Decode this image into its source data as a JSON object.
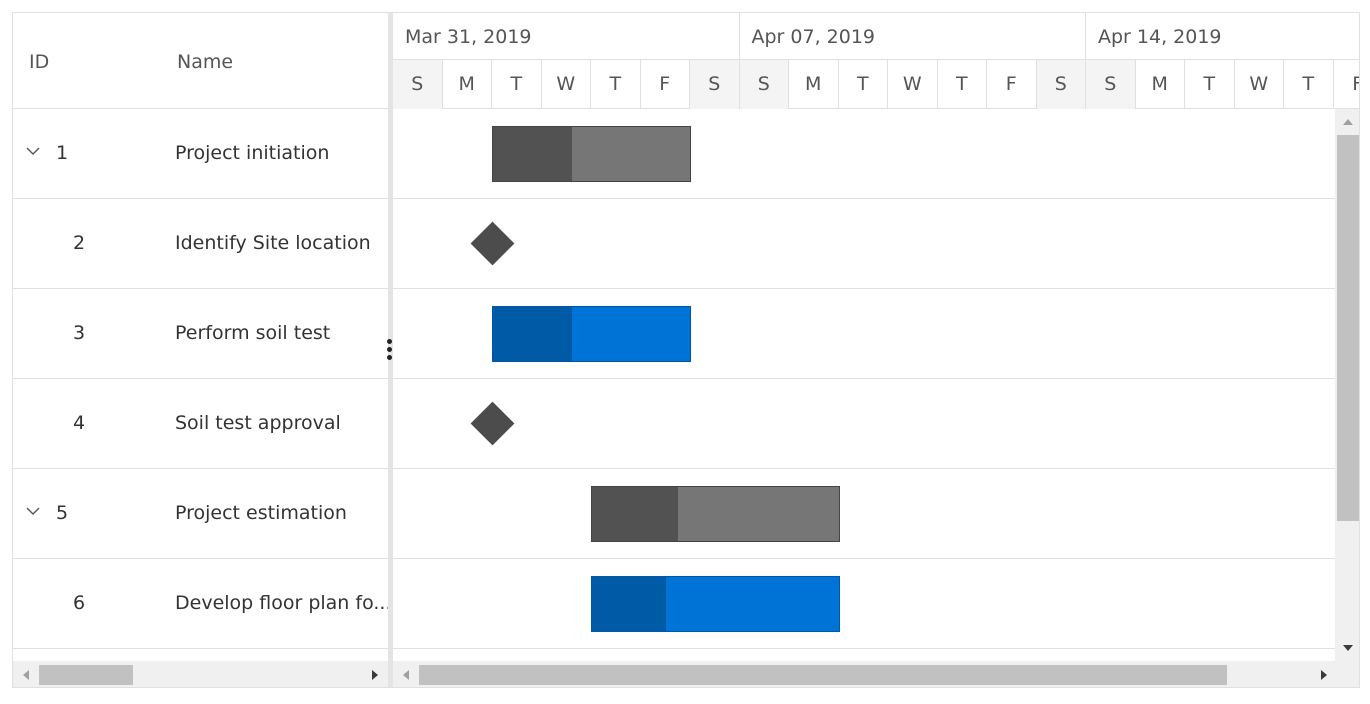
{
  "grid": {
    "columns": {
      "id": "ID",
      "name": "Name"
    },
    "rows": [
      {
        "id": "1",
        "name": "Project initiation",
        "parent": true,
        "icon": "chevron-down-icon"
      },
      {
        "id": "2",
        "name": "Identify Site location",
        "parent": false
      },
      {
        "id": "3",
        "name": "Perform soil test",
        "parent": false
      },
      {
        "id": "4",
        "name": "Soil test approval",
        "parent": false
      },
      {
        "id": "5",
        "name": "Project estimation",
        "parent": true,
        "icon": "chevron-down-icon"
      },
      {
        "id": "6",
        "name": "Develop floor plan fo...",
        "parent": false
      }
    ]
  },
  "timeline": {
    "weeks": [
      "Mar 31, 2019",
      "Apr 07, 2019",
      "Apr 14, 2019"
    ],
    "days": [
      "S",
      "M",
      "T",
      "W",
      "T",
      "F",
      "S",
      "S",
      "M",
      "T",
      "W",
      "T",
      "F",
      "S",
      "S",
      "M",
      "T",
      "W",
      "T",
      "F"
    ]
  },
  "tasks": [
    {
      "row": 0,
      "type": "parent",
      "start_day": 2,
      "duration_days": 4,
      "progress": 0.4
    },
    {
      "row": 1,
      "type": "milestone",
      "start_day": 2
    },
    {
      "row": 2,
      "type": "child",
      "start_day": 2,
      "duration_days": 4,
      "progress": 0.4
    },
    {
      "row": 3,
      "type": "milestone",
      "start_day": 2
    },
    {
      "row": 4,
      "type": "parent",
      "start_day": 4,
      "duration_days": 5,
      "progress": 0.35
    },
    {
      "row": 5,
      "type": "child",
      "start_day": 4,
      "duration_days": 5,
      "progress": 0.3
    }
  ],
  "colors": {
    "parent_bar": "#767676",
    "parent_progress": "#525252",
    "child_bar": "#0074d6",
    "child_progress": "#005aa6",
    "milestone": "#4c4c4c",
    "weekend_bg": "#f4f4f4"
  },
  "icons": {
    "resize_handle": "vertical-ellipsis-icon",
    "scroll_left": "scroll-left-arrow-icon",
    "scroll_right": "scroll-right-arrow-icon",
    "scroll_up": "scroll-up-arrow-icon",
    "scroll_down": "scroll-down-arrow-icon"
  }
}
